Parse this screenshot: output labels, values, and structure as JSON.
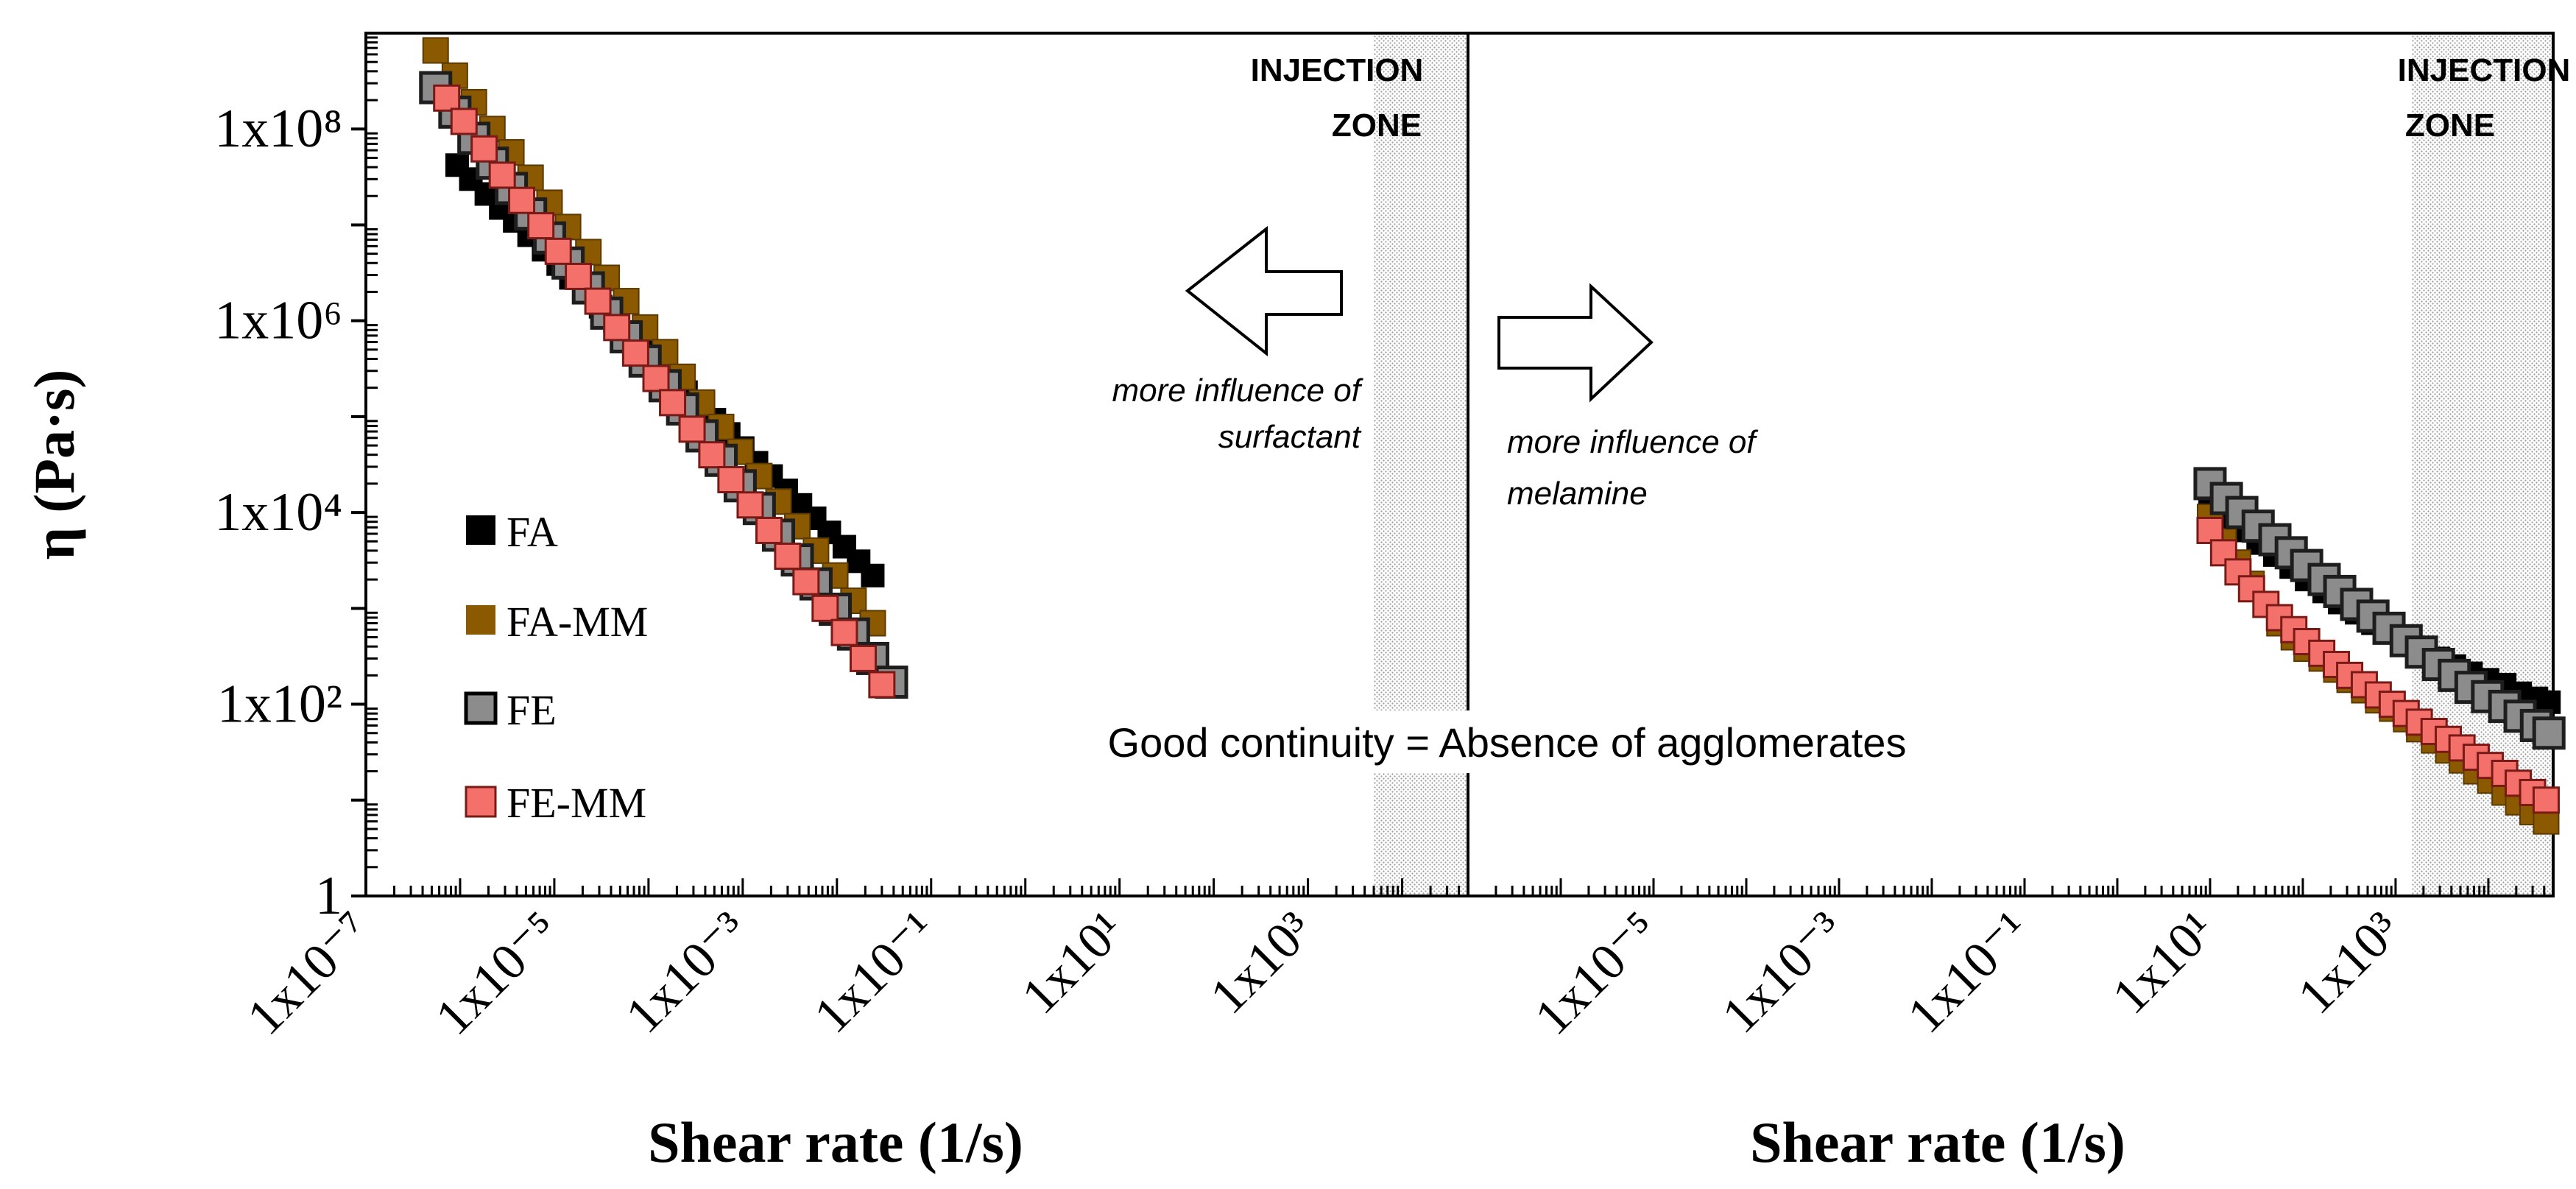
{
  "chart_data": {
    "type": "scatter",
    "scale": "log-log",
    "ylabel": "η (Pa·s)",
    "ylim": [
      1,
      1000000000
    ],
    "ytick_labels": [
      {
        "value": 1,
        "text": "1"
      },
      {
        "value": 100,
        "text": "1x10²"
      },
      {
        "value": 10000,
        "text": "1x10⁴"
      },
      {
        "value": 1000000,
        "text": "1x10⁶"
      },
      {
        "value": 100000000,
        "text": "1x10⁸"
      }
    ],
    "legend": {
      "placement": "lower-left of left panel",
      "entries": [
        {
          "name": "FA",
          "color": "#000000"
        },
        {
          "name": "FA-MM",
          "color": "#8B5A00"
        },
        {
          "name": "FE",
          "color": "#8C8C8C"
        },
        {
          "name": "FE-MM",
          "color": "#F4706B"
        }
      ]
    },
    "center_annotation": "Good continuity = Absence of agglomerates",
    "panels": [
      {
        "xlabel": "Shear rate (1/s)",
        "xlim": [
          1e-07,
          50000
        ],
        "xtick_labels": [
          {
            "value": 1e-07,
            "text": "1x10⁻⁷"
          },
          {
            "value": 1e-05,
            "text": "1x10⁻⁵"
          },
          {
            "value": 0.001,
            "text": "1x10⁻³"
          },
          {
            "value": 0.1,
            "text": "1x10⁻¹"
          },
          {
            "value": 10,
            "text": "1x10¹"
          },
          {
            "value": 1000,
            "text": "1x10³"
          }
        ],
        "zone_label": [
          "INJECTION",
          "ZONE"
        ],
        "zone_range": [
          5000,
          50000
        ],
        "arrow_direction": "left",
        "arrow_text": [
          "more influence of",
          "surfactant"
        ],
        "series": [
          {
            "name": "FA",
            "points": [
              [
                9.3e-07,
                42000000
              ],
              [
                1.3e-06,
                30000000
              ],
              [
                1.9e-06,
                21000000
              ],
              [
                2.7e-06,
                15000000
              ],
              [
                3.8e-06,
                11000000
              ],
              [
                5.4e-06,
                7800000
              ],
              [
                7.7e-06,
                5500000
              ],
              [
                1.1e-05,
                3900000
              ],
              [
                1.5e-05,
                2800000
              ],
              [
                2.2e-05,
                2000000
              ],
              [
                3.1e-05,
                1400000
              ],
              [
                4.4e-05,
                1000000
              ],
              [
                6.2e-05,
                720000
              ],
              [
                8.8e-05,
                510000
              ],
              [
                0.00013,
                360000
              ],
              [
                0.00018,
                260000
              ],
              [
                0.00025,
                180000
              ],
              [
                0.00035,
                130000
              ],
              [
                0.0005,
                93000
              ],
              [
                0.00071,
                66000
              ],
              [
                0.001,
                47000
              ],
              [
                0.0014,
                33000
              ],
              [
                0.002,
                24000
              ],
              [
                0.0029,
                17000
              ],
              [
                0.0041,
                12000
              ],
              [
                0.0058,
                8700
              ],
              [
                0.0083,
                6200
              ],
              [
                0.012,
                4400
              ],
              [
                0.017,
                3100
              ],
              [
                0.024,
                2200
              ]
            ]
          },
          {
            "name": "FA-MM",
            "points": [
              [
                5.5e-07,
                660000000
              ],
              [
                8.8e-07,
                360000000
              ],
              [
                1.4e-06,
                190000000
              ],
              [
                2.2e-06,
                100000000
              ],
              [
                3.5e-06,
                57000000
              ],
              [
                5.6e-06,
                31000000
              ],
              [
                8.9e-06,
                17000000
              ],
              [
                1.4e-05,
                9500000
              ],
              [
                2.3e-05,
                5200000
              ],
              [
                3.6e-05,
                2800000
              ],
              [
                5.8e-05,
                1600000
              ],
              [
                9.2e-05,
                850000
              ],
              [
                0.00015,
                470000
              ],
              [
                0.00023,
                260000
              ],
              [
                0.00037,
                140000
              ],
              [
                0.00059,
                78000
              ],
              [
                0.00094,
                43000
              ],
              [
                0.0015,
                24000
              ],
              [
                0.0024,
                13000
              ],
              [
                0.0038,
                7200
              ],
              [
                0.006,
                4000
              ],
              [
                0.0096,
                2200
              ],
              [
                0.015,
                1200
              ],
              [
                0.024,
                700
              ]
            ]
          },
          {
            "name": "FE",
            "points": [
              [
                5.5e-07,
                270000000
              ],
              [
                8.8e-07,
                150000000
              ],
              [
                1.4e-06,
                80000000
              ],
              [
                2.2e-06,
                44000000
              ],
              [
                3.5e-06,
                24000000
              ],
              [
                5.6e-06,
                13000000
              ],
              [
                8.9e-06,
                7300000
              ],
              [
                1.4e-05,
                4000000
              ],
              [
                2.3e-05,
                2200000
              ],
              [
                3.6e-05,
                1200000
              ],
              [
                5.8e-05,
                680000
              ],
              [
                9.2e-05,
                380000
              ],
              [
                0.00015,
                210000
              ],
              [
                0.00023,
                120000
              ],
              [
                0.00037,
                63000
              ],
              [
                0.00059,
                35000
              ],
              [
                0.00094,
                19000
              ],
              [
                0.0015,
                11000
              ],
              [
                0.0024,
                5800
              ],
              [
                0.0038,
                3200
              ],
              [
                0.006,
                1800
              ],
              [
                0.0096,
                980
              ],
              [
                0.015,
                540
              ],
              [
                0.024,
                300
              ],
              [
                0.038,
                170
              ]
            ]
          },
          {
            "name": "FE-MM",
            "points": [
              [
                7.2e-07,
                210000000
              ],
              [
                1.1e-06,
                120000000
              ],
              [
                1.8e-06,
                62000000
              ],
              [
                2.8e-06,
                33000000
              ],
              [
                4.5e-06,
                18000000
              ],
              [
                7.2e-06,
                9800000
              ],
              [
                1.1e-05,
                5300000
              ],
              [
                1.8e-05,
                2900000
              ],
              [
                2.9e-05,
                1600000
              ],
              [
                4.6e-05,
                850000
              ],
              [
                7.3e-05,
                460000
              ],
              [
                0.00012,
                250000
              ],
              [
                0.00018,
                140000
              ],
              [
                0.00029,
                74000
              ],
              [
                0.00047,
                40000
              ],
              [
                0.00075,
                22000
              ],
              [
                0.0012,
                12000
              ],
              [
                0.0019,
                6500
              ],
              [
                0.003,
                3500
              ],
              [
                0.0047,
                1900
              ],
              [
                0.0075,
                1000
              ],
              [
                0.012,
                560
              ],
              [
                0.019,
                300
              ],
              [
                0.03,
                160
              ]
            ]
          }
        ]
      },
      {
        "xlabel": "Shear rate (1/s)",
        "xlim": [
          1e-07,
          50000
        ],
        "xtick_labels": [
          {
            "value": 1e-05,
            "text": "1x10⁻⁵"
          },
          {
            "value": 0.001,
            "text": "1x10⁻³"
          },
          {
            "value": 0.1,
            "text": "1x10⁻¹"
          },
          {
            "value": 10,
            "text": "1x10¹"
          },
          {
            "value": 1000,
            "text": "1x10³"
          }
        ],
        "zone_label": [
          "INJECTION",
          "ZONE"
        ],
        "zone_range": [
          1500,
          50000
        ],
        "arrow_direction": "right",
        "arrow_text": [
          "more influence of",
          "melamine"
        ],
        "series": [
          {
            "name": "FA",
            "points": [
              [
                10,
                11000
              ],
              [
                15,
                8500
              ],
              [
                22,
                6500
              ],
              [
                33,
                4800
              ],
              [
                50,
                3600
              ],
              [
                75,
                2700
              ],
              [
                110,
                2000
              ],
              [
                170,
                1500
              ],
              [
                250,
                1150
              ],
              [
                380,
                900
              ],
              [
                570,
                700
              ],
              [
                850,
                560
              ],
              [
                1300,
                450
              ],
              [
                1900,
                360
              ],
              [
                2900,
                300
              ],
              [
                4300,
                250
              ],
              [
                6500,
                210
              ],
              [
                9800,
                180
              ],
              [
                15000,
                160
              ],
              [
                22000,
                130
              ],
              [
                33000,
                115
              ],
              [
                45000,
                105
              ]
            ]
          },
          {
            "name": "FA-MM",
            "points": [
              [
                10,
                9000
              ],
              [
                14,
                5000
              ],
              [
                20,
                3000
              ],
              [
                28,
                1800
              ],
              [
                40,
                1100
              ],
              [
                56,
                700
              ],
              [
                80,
                500
              ],
              [
                110,
                380
              ],
              [
                160,
                300
              ],
              [
                230,
                230
              ],
              [
                320,
                180
              ],
              [
                460,
                140
              ],
              [
                650,
                110
              ],
              [
                920,
                90
              ],
              [
                1300,
                70
              ],
              [
                1800,
                55
              ],
              [
                2600,
                42
              ],
              [
                3700,
                33
              ],
              [
                5200,
                26
              ],
              [
                7400,
                20
              ],
              [
                10500,
                16
              ],
              [
                15000,
                12
              ],
              [
                21000,
                9.5
              ],
              [
                30000,
                7.5
              ],
              [
                42000,
                6
              ]
            ]
          },
          {
            "name": "FE",
            "points": [
              [
                10,
                20000
              ],
              [
                15,
                14000
              ],
              [
                22,
                10000
              ],
              [
                33,
                7200
              ],
              [
                50,
                5200
              ],
              [
                75,
                3800
              ],
              [
                110,
                2800
              ],
              [
                170,
                2000
              ],
              [
                250,
                1500
              ],
              [
                380,
                1100
              ],
              [
                570,
                830
              ],
              [
                850,
                620
              ],
              [
                1300,
                460
              ],
              [
                1900,
                350
              ],
              [
                2900,
                260
              ],
              [
                4300,
                200
              ],
              [
                6500,
                150
              ],
              [
                9800,
                120
              ],
              [
                15000,
                95
              ],
              [
                22000,
                75
              ],
              [
                33000,
                60
              ],
              [
                45000,
                50
              ]
            ]
          },
          {
            "name": "FE-MM",
            "points": [
              [
                10,
                6500
              ],
              [
                14,
                3800
              ],
              [
                20,
                2400
              ],
              [
                28,
                1600
              ],
              [
                40,
                1100
              ],
              [
                56,
                800
              ],
              [
                80,
                600
              ],
              [
                110,
                450
              ],
              [
                160,
                340
              ],
              [
                230,
                260
              ],
              [
                320,
                200
              ],
              [
                460,
                160
              ],
              [
                650,
                125
              ],
              [
                920,
                100
              ],
              [
                1300,
                80
              ],
              [
                1800,
                65
              ],
              [
                2600,
                52
              ],
              [
                3700,
                43
              ],
              [
                5200,
                35
              ],
              [
                7400,
                28
              ],
              [
                10500,
                23
              ],
              [
                15000,
                19
              ],
              [
                21000,
                15
              ],
              [
                30000,
                12
              ],
              [
                42000,
                10
              ]
            ]
          }
        ]
      }
    ]
  }
}
